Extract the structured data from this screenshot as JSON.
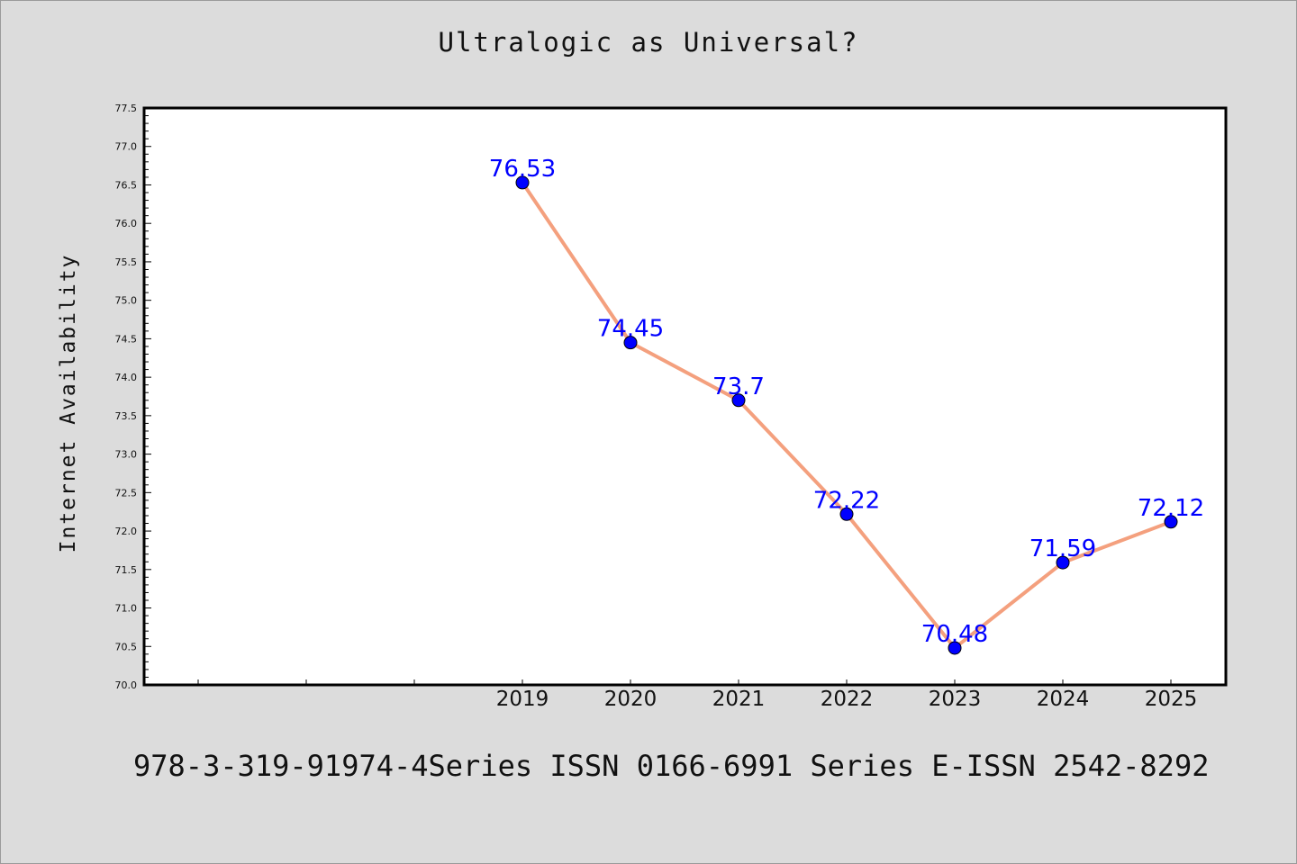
{
  "chart_data": {
    "type": "line",
    "title": "Ultralogic as Universal?",
    "xlabel": "",
    "ylabel": "Internet Availability",
    "categories": [
      "",
      "",
      "",
      "2019",
      "2020",
      "2021",
      "2022",
      "2023",
      "2024",
      "2025"
    ],
    "series": [
      {
        "values": [
          null,
          null,
          null,
          76.53,
          74.45,
          73.7,
          72.22,
          70.48,
          71.59,
          72.12
        ]
      }
    ],
    "data_labels": [
      "",
      "",
      "",
      "76.53",
      "74.45",
      "73.7",
      "72.22",
      "70.48",
      "71.59",
      "72.12"
    ],
    "ylim": [
      70.0,
      77.5
    ],
    "y_ticks": [
      "70.0",
      "70.5",
      "71.0",
      "71.5",
      "72.0",
      "72.5",
      "73.0",
      "73.5",
      "74.0",
      "74.5",
      "75.0",
      "75.5",
      "76.0",
      "76.5",
      "77.0",
      "77.5"
    ],
    "grid": false,
    "legend": "none",
    "colors": {
      "line": "#f4a07e",
      "marker": "#0000ff",
      "data_label": "#0000ff",
      "background": "#dcdcdc",
      "plot_background": "#ffffff"
    }
  },
  "footer": "978-3-319-91974-4Series ISSN 0166-6991 Series E-ISSN 2542-8292"
}
